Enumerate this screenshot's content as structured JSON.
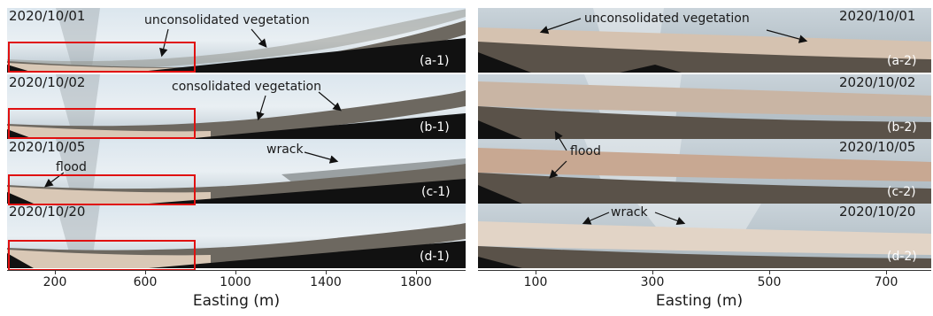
{
  "left_column": {
    "panels": [
      {
        "date": "2020/10/01",
        "label": "(a-1)",
        "annotations": [
          "unconsolidated vegetation"
        ]
      },
      {
        "date": "2020/10/02",
        "label": "(b-1)",
        "annotations": [
          "consolidated vegetation"
        ]
      },
      {
        "date": "2020/10/05",
        "label": "(c-1)",
        "annotations": [
          "flood",
          "wrack"
        ]
      },
      {
        "date": "2020/10/20",
        "label": "(d-1)",
        "annotations": []
      }
    ],
    "axis": {
      "title": "Easting (m)",
      "ticks": [
        "200",
        "600",
        "1000",
        "1400",
        "1800"
      ]
    }
  },
  "right_column": {
    "panels": [
      {
        "date": "2020/10/01",
        "label": "(a-2)",
        "annotations": [
          "unconsolidated vegetation"
        ]
      },
      {
        "date": "2020/10/02",
        "label": "(b-2)",
        "annotations": []
      },
      {
        "date": "2020/10/05",
        "label": "(c-2)",
        "annotations": [
          "flood"
        ]
      },
      {
        "date": "2020/10/20",
        "label": "(d-2)",
        "annotations": [
          "wrack"
        ]
      }
    ],
    "axis": {
      "title": "Easting (m)",
      "ticks": [
        "100",
        "300",
        "500",
        "700"
      ]
    }
  },
  "colors": {
    "highlight_box": "#e01010",
    "sky": "#cfdde6",
    "sand": "#d8c4b4",
    "ground": "#111111"
  }
}
